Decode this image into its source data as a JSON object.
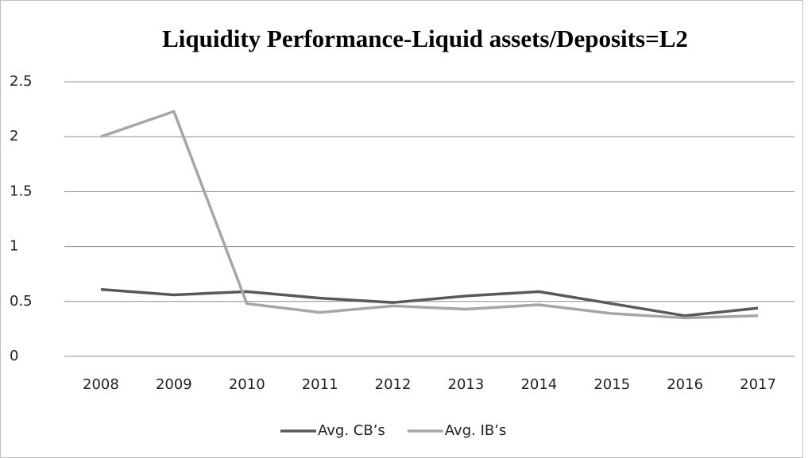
{
  "chart_data": {
    "type": "line",
    "title": "Liquidity Performance-Liquid assets/Deposits=L2",
    "categories": [
      "2008",
      "2009",
      "2010",
      "2011",
      "2012",
      "2013",
      "2014",
      "2015",
      "2016",
      "2017"
    ],
    "series": [
      {
        "name": "Avg. CB’s",
        "color": "#595959",
        "values": [
          0.61,
          0.56,
          0.59,
          0.53,
          0.49,
          0.55,
          0.59,
          0.48,
          0.37,
          0.44
        ]
      },
      {
        "name": "Avg. IB’s",
        "color": "#a6a6a6",
        "values": [
          2.0,
          2.23,
          0.48,
          0.4,
          0.46,
          0.43,
          0.47,
          0.39,
          0.35,
          0.37
        ]
      }
    ],
    "ylim": [
      0,
      2.5
    ],
    "yticks": [
      0,
      {
        "value": 0.5,
        "label": "0.5"
      },
      1,
      {
        "value": 1.5,
        "label": "1.5"
      },
      2,
      {
        "value": 2.5,
        "label": "2.5"
      }
    ],
    "grid": true,
    "legend": "bottom"
  }
}
